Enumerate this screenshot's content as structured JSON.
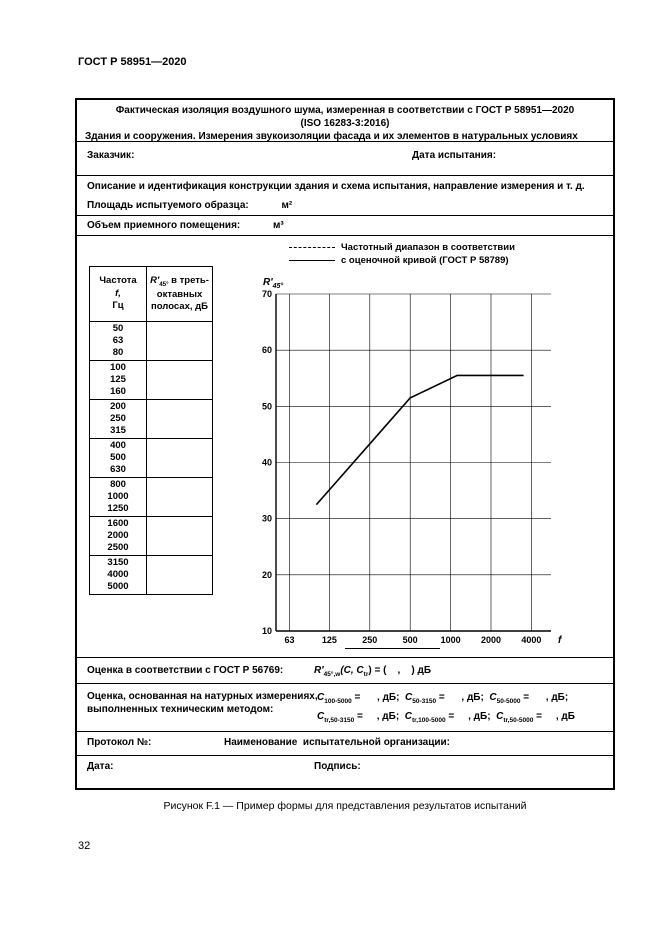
{
  "page": {
    "doc_header": "ГОСТ Р 58951—2020",
    "caption": "Рисунок F.1 — Пример формы для представления результатов испытаний",
    "page_number": "32"
  },
  "form": {
    "title_line1": "Фактическая изоляция воздушного шума, измеренная в соответствии с ГОСТ Р 58951—2020",
    "title_line2": "(ISO 16283-3:2016)",
    "title_line3": "Здания и сооружения. Измерения звукоизоляции фасада и их элементов в натуральных условиях",
    "customer_label": "Заказчик:",
    "test_date_label": "Дата испытания:",
    "description_label": "Описание и идентификация конструкции здания и схема испытания, направление измерения и т. д.",
    "area_label": "Площадь испытуемого образца:",
    "area_unit": "м²",
    "volume_label": "Объем приемного помещения:",
    "volume_unit": "м³",
    "legend": {
      "dashed_label": "Частотный диапазон в соответствии",
      "solid_label": "с оценочной кривой (ГОСТ Р 58789)"
    },
    "table": {
      "col1_line1": "Частота",
      "col1_line2": "f,",
      "col1_line3": "Гц",
      "col2_base": "R′",
      "col2_sub": "45°",
      "col2_rest": " в треть-октавных полосах, дБ",
      "groups": [
        [
          "50",
          "63",
          "80"
        ],
        [
          "100",
          "125",
          "160"
        ],
        [
          "200",
          "250",
          "315"
        ],
        [
          "400",
          "500",
          "630"
        ],
        [
          "800",
          "1000",
          "1250"
        ],
        [
          "1600",
          "2000",
          "2500"
        ],
        [
          "3150",
          "4000",
          "5000"
        ]
      ]
    },
    "rating": {
      "label": "Оценка в соответствии с ГОСТ Р 56769:",
      "formula_base": "R′",
      "formula_sub": "45°,w",
      "formula_mid": "(C, C",
      "formula_mid_sub": "tr",
      "formula_tail": ") = (    ,    ) дБ"
    },
    "field_rating": {
      "label_line1": "Оценка, основанная на натурных измерениях,",
      "label_line2": "выполненных техническим методом:",
      "terms": [
        {
          "b": "C",
          "s": "100-5000",
          "t": " =      , дБ;  "
        },
        {
          "b": "C",
          "s": "50-3150",
          "t": " =      , дБ;  "
        },
        {
          "b": "C",
          "s": "50-5000",
          "t": " =      , дБ;"
        },
        {
          "b": "C",
          "s": "tr,50-3150",
          "t": " =     , дБ;  "
        },
        {
          "b": "C",
          "s": "tr,100-5000",
          "t": " =     , дБ;  "
        },
        {
          "b": "C",
          "s": "tr,50-5000",
          "t": " =     , дБ"
        }
      ]
    },
    "protocol_label": "Протокол №:",
    "organization_label": "Наименование  испытательной организации:",
    "date_label": "Дата:",
    "signature_label": "Подпись:"
  },
  "chart_data": {
    "type": "line",
    "x_scale": "log",
    "xlim": [
      50,
      5600
    ],
    "ylim": [
      10,
      70
    ],
    "x_ticks": [
      63,
      125,
      250,
      500,
      1000,
      2000,
      4000
    ],
    "y_ticks": [
      10,
      20,
      30,
      40,
      50,
      60,
      70
    ],
    "ylabel_base": "R′",
    "ylabel_sub": "45°",
    "xlabel": "f",
    "grid": true,
    "series": [
      {
        "style": "solid",
        "x": [
          100,
          500,
          1120,
          3500
        ],
        "y": [
          32.5,
          51.5,
          55.5,
          55.5
        ]
      }
    ]
  }
}
